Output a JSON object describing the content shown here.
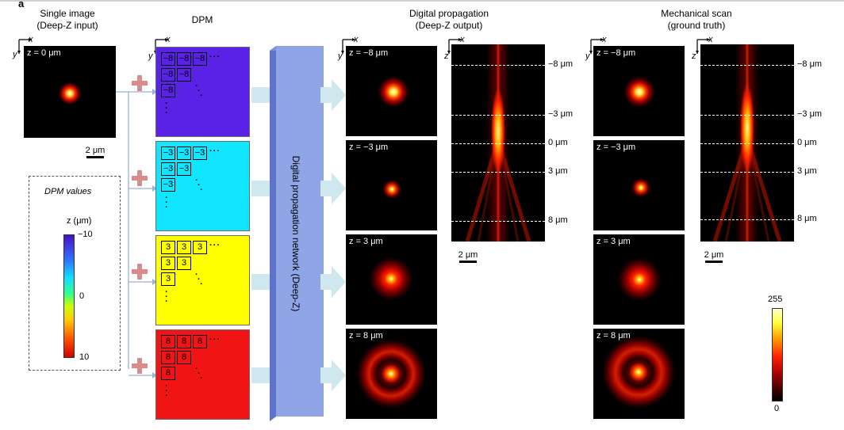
{
  "panel_letter": "a",
  "headers": {
    "single_image": "Single image",
    "single_image_sub": "(Deep-Z input)",
    "dpm": "DPM",
    "digital_prop": "Digital propagation",
    "digital_prop_sub": "(Deep-Z output)",
    "mech_scan": "Mechanical scan",
    "mech_scan_sub": "(ground truth)"
  },
  "axes": {
    "x": "x",
    "y": "y",
    "z": "z"
  },
  "input_tile_label": "z = 0 μm",
  "scale_label": "2 μm",
  "dpm_legend": {
    "title": "DPM values",
    "unit_label": "z (μm)",
    "top_value": "−10",
    "mid_value": "0",
    "bottom_value": "10"
  },
  "dpm_panels": [
    {
      "value": "−8",
      "color": "#5a22e6"
    },
    {
      "value": "−3",
      "color": "#10e6ff"
    },
    {
      "value": "3",
      "color": "#ffff00"
    },
    {
      "value": "8",
      "color": "#f01414"
    }
  ],
  "dots_h": "···",
  "network_label": "Digital propagation network (Deep-Z)",
  "tile_labels": [
    "z = −8 μm",
    "z = −3 μm",
    "z = 3 μm",
    "z = 8 μm"
  ],
  "xz_ticks": [
    "−8 μm",
    "−3 μm",
    "0 μm",
    "3 μm",
    "8 μm"
  ],
  "colorbar": {
    "max": "255",
    "min": "0"
  }
}
